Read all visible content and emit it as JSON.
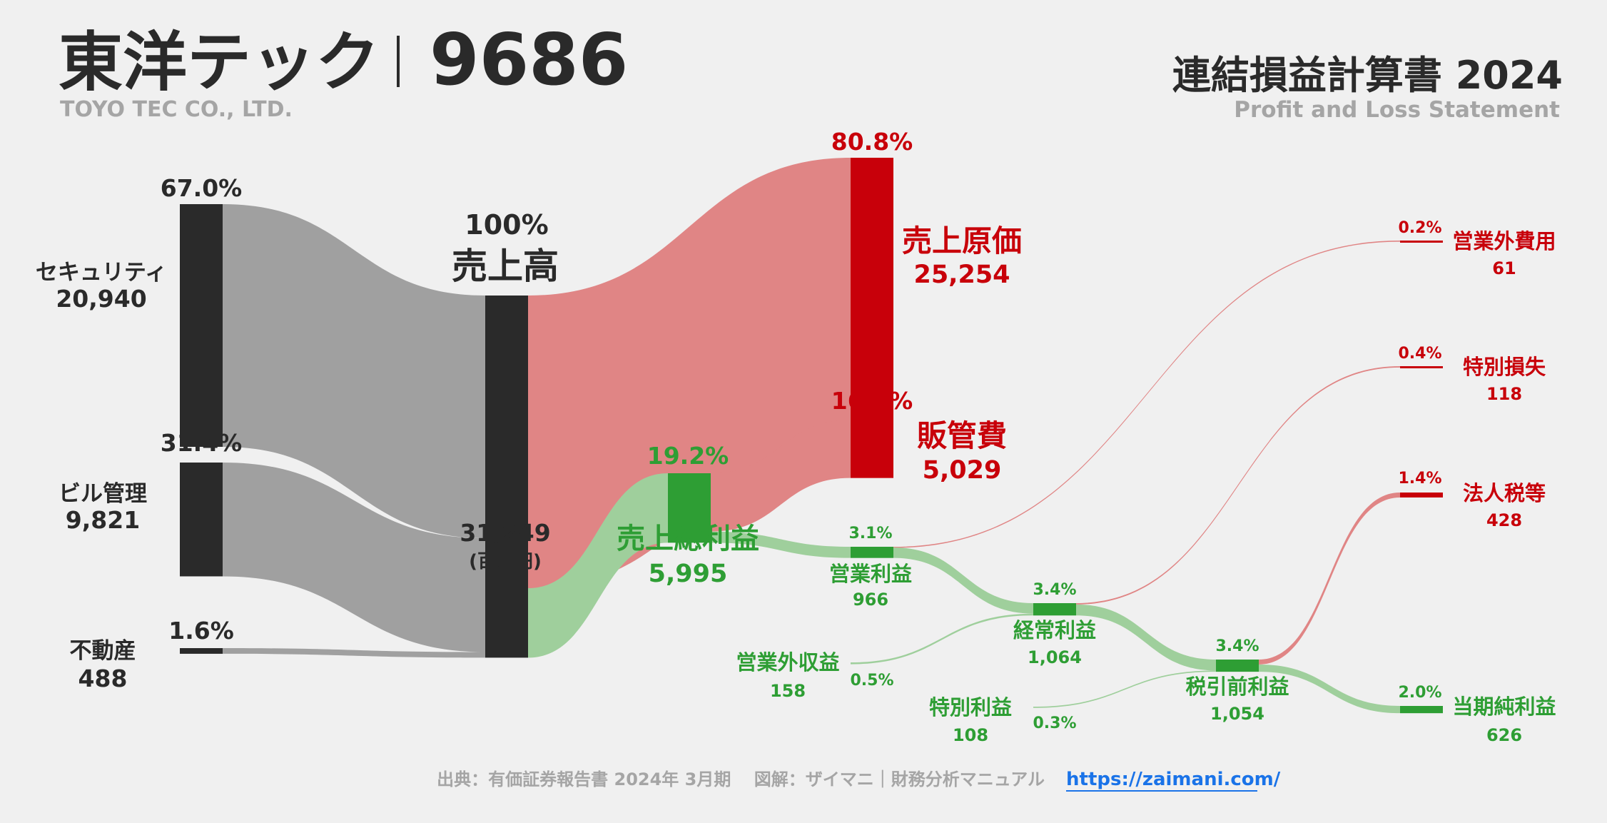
{
  "header": {
    "company": "東洋テック",
    "code": "9686",
    "company_en": "TOYO TEC CO., LTD.",
    "statement": "連結損益計算書 2024",
    "statement_en": "Profit and Loss Statement"
  },
  "colors": {
    "dark": "#2a2a2a",
    "grey_flow": "#a0a0a0",
    "red": "#c8000a",
    "red_flow": "#e08585",
    "green": "#2e9e34",
    "green_flow": "#9fcf9c"
  },
  "footer": {
    "source": "出典：有価証券報告書 2024年 3月期　 図解：ザイマニ｜財務分析マニュアル",
    "url": "https://zaimani.com/"
  },
  "chart_data": {
    "type": "sankey",
    "unit": "(百万円)",
    "nodes": [
      {
        "id": "security",
        "label": "セキュリティ",
        "value": 20940,
        "value_label": "20,940",
        "pct": "67.0%"
      },
      {
        "id": "building",
        "label": "ビル管理",
        "value": 9821,
        "value_label": "9,821",
        "pct": "31.4%"
      },
      {
        "id": "realestate",
        "label": "不動産",
        "value": 488,
        "value_label": "488",
        "pct": "1.6%"
      },
      {
        "id": "revenue",
        "label": "売上高",
        "value": 31249,
        "value_label": "31,249",
        "pct": "100%"
      },
      {
        "id": "cogs",
        "label": "売上原価",
        "value": 25254,
        "value_label": "25,254",
        "pct": "80.8%"
      },
      {
        "id": "gross",
        "label": "売上総利益",
        "value": 5995,
        "value_label": "5,995",
        "pct": "19.2%"
      },
      {
        "id": "sga",
        "label": "販管費",
        "value": 5029,
        "value_label": "5,029",
        "pct": "16.1%"
      },
      {
        "id": "op",
        "label": "営業利益",
        "value": 966,
        "value_label": "966",
        "pct": "3.1%"
      },
      {
        "id": "nonop_inc",
        "label": "営業外収益",
        "value": 158,
        "value_label": "158",
        "pct": "0.5%"
      },
      {
        "id": "nonop_exp",
        "label": "営業外費用",
        "value": 61,
        "value_label": "61",
        "pct": "0.2%"
      },
      {
        "id": "ordinary",
        "label": "経常利益",
        "value": 1064,
        "value_label": "1,064",
        "pct": "3.4%"
      },
      {
        "id": "ext_gain",
        "label": "特別利益",
        "value": 108,
        "value_label": "108",
        "pct": "0.3%"
      },
      {
        "id": "ext_loss",
        "label": "特別損失",
        "value": 118,
        "value_label": "118",
        "pct": "0.4%"
      },
      {
        "id": "pretax",
        "label": "税引前利益",
        "value": 1054,
        "value_label": "1,054",
        "pct": "3.4%"
      },
      {
        "id": "tax",
        "label": "法人税等",
        "value": 428,
        "value_label": "428",
        "pct": "1.4%"
      },
      {
        "id": "net",
        "label": "当期純利益",
        "value": 626,
        "value_label": "626",
        "pct": "2.0%"
      }
    ],
    "links": [
      {
        "source": "security",
        "target": "revenue",
        "value": 20940
      },
      {
        "source": "building",
        "target": "revenue",
        "value": 9821
      },
      {
        "source": "realestate",
        "target": "revenue",
        "value": 488
      },
      {
        "source": "revenue",
        "target": "cogs",
        "value": 25254
      },
      {
        "source": "revenue",
        "target": "gross",
        "value": 5995
      },
      {
        "source": "gross",
        "target": "sga",
        "value": 5029
      },
      {
        "source": "gross",
        "target": "op",
        "value": 966
      },
      {
        "source": "op",
        "target": "nonop_exp",
        "value": 61
      },
      {
        "source": "op",
        "target": "ordinary",
        "value": 905
      },
      {
        "source": "nonop_inc",
        "target": "ordinary",
        "value": 158
      },
      {
        "source": "ordinary",
        "target": "ext_loss",
        "value": 118
      },
      {
        "source": "ordinary",
        "target": "pretax",
        "value": 946
      },
      {
        "source": "ext_gain",
        "target": "pretax",
        "value": 108
      },
      {
        "source": "pretax",
        "target": "tax",
        "value": 428
      },
      {
        "source": "pretax",
        "target": "net",
        "value": 626
      }
    ]
  }
}
